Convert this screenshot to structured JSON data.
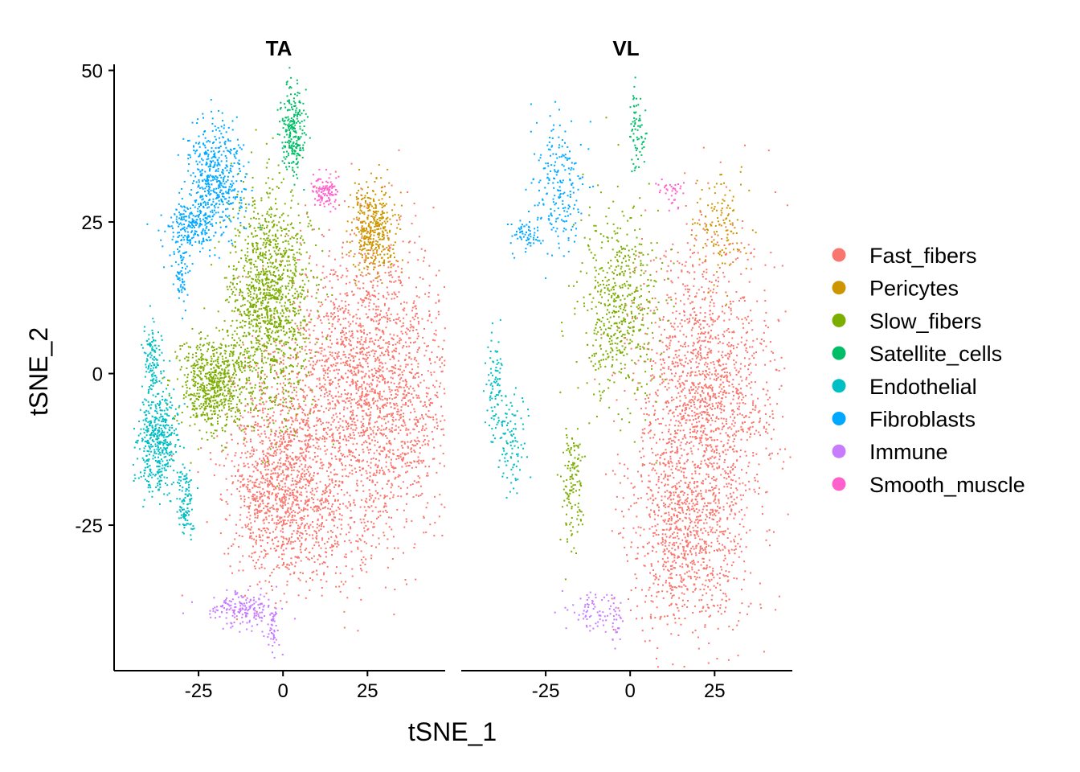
{
  "chart_data": {
    "type": "scatter",
    "xlabel": "tSNE_1",
    "ylabel": "tSNE_2",
    "panels": [
      "TA",
      "VL"
    ],
    "xlim": [
      -50,
      48
    ],
    "ylim": [
      -49,
      51
    ],
    "xticks": [
      -25,
      0,
      25
    ],
    "xtick_labels": [
      "-25",
      "0",
      "25"
    ],
    "yticks": [
      -25,
      0,
      25,
      50
    ],
    "ytick_labels": [
      "-25",
      "0",
      "25",
      "50"
    ],
    "legend_position": "right",
    "grid": false,
    "series": [
      {
        "name": "Fast_fibers",
        "color": "#F8766D",
        "clusters": {
          "TA": [
            [
              25,
              -3,
              14,
              12,
              2400
            ],
            [
              -2,
              -17,
              7,
              8,
              1000
            ],
            [
              10,
              -25,
              10,
              5,
              300
            ]
          ],
          "VL": [
            [
              20,
              -2,
              10,
              13,
              1300
            ],
            [
              17,
              -27,
              9,
              8,
              900
            ],
            [
              28,
              -7,
              9,
              6,
              250
            ]
          ]
        }
      },
      {
        "name": "Pericytes",
        "color": "#CD9600",
        "clusters": {
          "TA": [
            [
              27,
              24,
              3.5,
              3.5,
              400
            ]
          ],
          "VL": [
            [
              26,
              24,
              4,
              4,
              130
            ]
          ]
        }
      },
      {
        "name": "Slow_fibers",
        "color": "#7CAE00",
        "clusters": {
          "TA": [
            [
              -4,
              12,
              6,
              9,
              1300
            ],
            [
              -21,
              -2,
              5,
              4,
              650
            ]
          ],
          "VL": [
            [
              -3,
              11,
              6,
              8,
              550
            ],
            [
              -17,
              -18,
              1.5,
              5,
              140
            ]
          ]
        }
      },
      {
        "name": "Satellite_cells",
        "color": "#00BE67",
        "clusters": {
          "TA": [
            [
              3,
              40,
              1.8,
              3.5,
              250
            ]
          ],
          "VL": [
            [
              2,
              40,
              1.2,
              4,
              70
            ]
          ]
        }
      },
      {
        "name": "Endothelial",
        "color": "#00BFC4",
        "clusters": {
          "TA": [
            [
              -39,
              2,
              1.5,
              3,
              120
            ],
            [
              -37,
              -11,
              3,
              4,
              450
            ],
            [
              -29,
              -21,
              1.2,
              3,
              110
            ]
          ],
          "VL": [
            [
              -40,
              -3,
              1.5,
              5,
              90
            ],
            [
              -35,
              -12,
              2.5,
              4,
              100
            ]
          ]
        }
      },
      {
        "name": "Fibroblasts",
        "color": "#00A9FF",
        "clusters": {
          "TA": [
            [
              -20,
              32,
              4,
              4.5,
              500
            ],
            [
              -28,
              24,
              4,
              2,
              200
            ],
            [
              -30,
              15,
              1,
              3,
              60
            ]
          ],
          "VL": [
            [
              -21,
              31,
              4,
              5,
              210
            ],
            [
              -31,
              23,
              2.5,
              1.5,
              60
            ]
          ]
        }
      },
      {
        "name": "Immune",
        "color": "#C77CFF",
        "clusters": {
          "TA": [
            [
              -12,
              -39,
              5,
              1.5,
              180
            ],
            [
              -3,
              -42,
              1,
              2,
              40
            ]
          ],
          "VL": [
            [
              -12,
              -39,
              4,
              1.5,
              70
            ],
            [
              -4,
              -41,
              1,
              2,
              25
            ]
          ]
        }
      },
      {
        "name": "Smooth_muscle",
        "color": "#FF61CC",
        "clusters": {
          "TA": [
            [
              12,
              30,
              2,
              1.3,
              110
            ]
          ],
          "VL": [
            [
              12,
              30,
              1.8,
              1.3,
              35
            ]
          ]
        }
      }
    ]
  }
}
